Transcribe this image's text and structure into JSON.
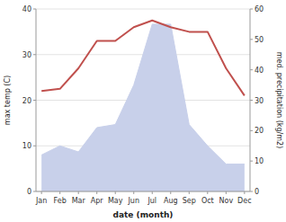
{
  "chart_data": {
    "type": "line",
    "xlabel": "date (month)",
    "ylabel": "max temp (C)",
    "y2label": "med. precipitation (kg/m2)",
    "categories": [
      "Jan",
      "Feb",
      "Mar",
      "Apr",
      "May",
      "Jun",
      "Jul",
      "Aug",
      "Sep",
      "Oct",
      "Nov",
      "Dec"
    ],
    "series": [
      {
        "type": "area",
        "axis": "y2",
        "color": "#c8d0ea",
        "values": [
          12,
          15,
          13,
          21,
          22,
          35,
          55,
          55,
          22,
          15,
          9,
          9
        ]
      },
      {
        "type": "line",
        "color": "#c0504d",
        "values": [
          22,
          22.5,
          27,
          33,
          33,
          36,
          37.5,
          36,
          35,
          35,
          27,
          21
        ]
      }
    ],
    "ylim": [
      0,
      40
    ],
    "yticks": [
      0,
      10,
      20,
      30,
      40
    ],
    "y2lim": [
      0,
      60
    ],
    "y2ticks": [
      0,
      10,
      20,
      30,
      40,
      50,
      60
    ],
    "grid": true
  }
}
